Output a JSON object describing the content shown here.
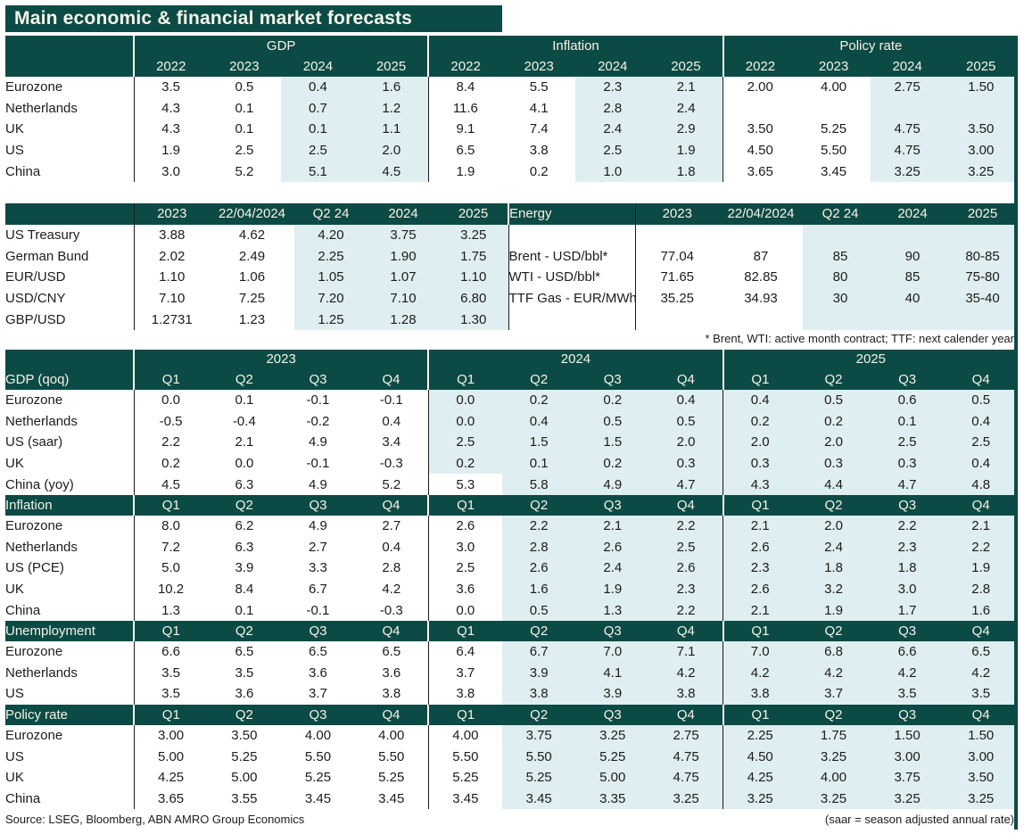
{
  "title": "Main economic & financial market forecasts",
  "colors": {
    "header_bg": "#0c4b45",
    "forecast_bg": "#dfeef0"
  },
  "annual_table": {
    "groups": [
      "GDP",
      "Inflation",
      "Policy rate"
    ],
    "years": [
      "2022",
      "2023",
      "2024",
      "2025"
    ],
    "rows": [
      {
        "label": "Eurozone",
        "gdp": [
          "3.5",
          "0.5",
          "0.4",
          "1.6"
        ],
        "inflation": [
          "8.4",
          "5.5",
          "2.3",
          "2.1"
        ],
        "policy_rate": [
          "2.00",
          "4.00",
          "2.75",
          "1.50"
        ]
      },
      {
        "label": "Netherlands",
        "gdp": [
          "4.3",
          "0.1",
          "0.7",
          "1.2"
        ],
        "inflation": [
          "11.6",
          "4.1",
          "2.8",
          "2.4"
        ],
        "policy_rate": [
          "",
          "",
          "",
          ""
        ]
      },
      {
        "label": "UK",
        "gdp": [
          "4.3",
          "0.1",
          "0.1",
          "1.1"
        ],
        "inflation": [
          "9.1",
          "7.4",
          "2.4",
          "2.9"
        ],
        "policy_rate": [
          "3.50",
          "5.25",
          "4.75",
          "3.50"
        ]
      },
      {
        "label": "US",
        "gdp": [
          "1.9",
          "2.5",
          "2.5",
          "2.0"
        ],
        "inflation": [
          "6.5",
          "3.8",
          "2.5",
          "1.9"
        ],
        "policy_rate": [
          "4.50",
          "5.50",
          "4.75",
          "3.00"
        ]
      },
      {
        "label": "China",
        "gdp": [
          "3.0",
          "5.2",
          "5.1",
          "4.5"
        ],
        "inflation": [
          "1.9",
          "0.2",
          "1.0",
          "1.8"
        ],
        "policy_rate": [
          "3.65",
          "3.45",
          "3.25",
          "3.25"
        ]
      }
    ]
  },
  "markets_table": {
    "value_headers": [
      "2023",
      "22/04/2024",
      "Q2 24",
      "2024",
      "2025"
    ],
    "energy_header": "Energy",
    "rates_rows": [
      {
        "label": "US Treasury",
        "values": [
          "3.88",
          "4.62",
          "4.20",
          "3.75",
          "3.25"
        ]
      },
      {
        "label": "German Bund",
        "values": [
          "2.02",
          "2.49",
          "2.25",
          "1.90",
          "1.75"
        ]
      },
      {
        "label": "EUR/USD",
        "values": [
          "1.10",
          "1.06",
          "1.05",
          "1.07",
          "1.10"
        ]
      },
      {
        "label": "USD/CNY",
        "values": [
          "7.10",
          "7.25",
          "7.20",
          "7.10",
          "6.80"
        ]
      },
      {
        "label": "GBP/USD",
        "values": [
          "1.2731",
          "1.23",
          "1.25",
          "1.28",
          "1.30"
        ]
      }
    ],
    "energy_rows": [
      {
        "label": "",
        "values": [
          "",
          "",
          "",
          "",
          ""
        ]
      },
      {
        "label": "Brent - USD/bbl*",
        "values": [
          "77.04",
          "87",
          "85",
          "90",
          "80-85"
        ]
      },
      {
        "label": "WTI - USD/bbl*",
        "values": [
          "71.65",
          "82.85",
          "80",
          "85",
          "75-80"
        ]
      },
      {
        "label": "TTF Gas - EUR/MWh*",
        "values": [
          "35.25",
          "34.93",
          "30",
          "40",
          "35-40"
        ]
      },
      {
        "label": "",
        "values": [
          "",
          "",
          "",
          "",
          ""
        ]
      }
    ],
    "footnote": "* Brent, WTI: active month contract; TTF: next calender year"
  },
  "quarterly_table": {
    "years": [
      "2023",
      "2024",
      "2025"
    ],
    "quarters": [
      "Q1",
      "Q2",
      "Q3",
      "Q4"
    ],
    "sections": [
      {
        "label": "GDP (qoq)",
        "rows": [
          {
            "label": "Eurozone",
            "values": [
              "0.0",
              "0.1",
              "-0.1",
              "-0.1",
              "0.0",
              "0.2",
              "0.2",
              "0.4",
              "0.4",
              "0.5",
              "0.6",
              "0.5"
            ],
            "forecast_from": 4
          },
          {
            "label": "Netherlands",
            "values": [
              "-0.5",
              "-0.4",
              "-0.2",
              "0.4",
              "0.0",
              "0.4",
              "0.5",
              "0.5",
              "0.2",
              "0.2",
              "0.1",
              "0.4"
            ],
            "forecast_from": 4
          },
          {
            "label": "US (saar)",
            "values": [
              "2.2",
              "2.1",
              "4.9",
              "3.4",
              "2.5",
              "1.5",
              "1.5",
              "2.0",
              "2.0",
              "2.0",
              "2.5",
              "2.5"
            ],
            "forecast_from": 4
          },
          {
            "label": "UK",
            "values": [
              "0.2",
              "0.0",
              "-0.1",
              "-0.3",
              "0.2",
              "0.1",
              "0.2",
              "0.3",
              "0.3",
              "0.3",
              "0.3",
              "0.4"
            ],
            "forecast_from": 4
          },
          {
            "label": "China (yoy)",
            "values": [
              "4.5",
              "6.3",
              "4.9",
              "5.2",
              "5.3",
              "5.8",
              "4.9",
              "4.7",
              "4.3",
              "4.4",
              "4.7",
              "4.8"
            ],
            "forecast_from": 5
          }
        ]
      },
      {
        "label": "Inflation",
        "rows": [
          {
            "label": "Eurozone",
            "values": [
              "8.0",
              "6.2",
              "4.9",
              "2.7",
              "2.6",
              "2.2",
              "2.1",
              "2.2",
              "2.1",
              "2.0",
              "2.2",
              "2.1"
            ],
            "forecast_from": 5
          },
          {
            "label": "Netherlands",
            "values": [
              "7.2",
              "6.3",
              "2.7",
              "0.4",
              "3.0",
              "2.8",
              "2.6",
              "2.5",
              "2.6",
              "2.4",
              "2.3",
              "2.2"
            ],
            "forecast_from": 5
          },
          {
            "label": "US (PCE)",
            "values": [
              "5.0",
              "3.9",
              "3.3",
              "2.8",
              "2.5",
              "2.6",
              "2.4",
              "2.6",
              "2.3",
              "1.8",
              "1.8",
              "1.9"
            ],
            "forecast_from": 5
          },
          {
            "label": "UK",
            "values": [
              "10.2",
              "8.4",
              "6.7",
              "4.2",
              "3.6",
              "1.6",
              "1.9",
              "2.3",
              "2.6",
              "3.2",
              "3.0",
              "2.8"
            ],
            "forecast_from": 5
          },
          {
            "label": "China",
            "values": [
              "1.3",
              "0.1",
              "-0.1",
              "-0.3",
              "0.0",
              "0.5",
              "1.3",
              "2.2",
              "2.1",
              "1.9",
              "1.7",
              "1.6"
            ],
            "forecast_from": 5
          }
        ]
      },
      {
        "label": "Unemployment",
        "rows": [
          {
            "label": "Eurozone",
            "values": [
              "6.6",
              "6.5",
              "6.5",
              "6.5",
              "6.4",
              "6.7",
              "7.0",
              "7.1",
              "7.0",
              "6.8",
              "6.6",
              "6.5"
            ],
            "forecast_from": 5
          },
          {
            "label": "Netherlands",
            "values": [
              "3.5",
              "3.5",
              "3.6",
              "3.6",
              "3.7",
              "3.9",
              "4.1",
              "4.2",
              "4.2",
              "4.2",
              "4.2",
              "4.2"
            ],
            "forecast_from": 5
          },
          {
            "label": "US",
            "values": [
              "3.5",
              "3.6",
              "3.7",
              "3.8",
              "3.8",
              "3.8",
              "3.9",
              "3.8",
              "3.8",
              "3.7",
              "3.5",
              "3.5"
            ],
            "forecast_from": 5
          }
        ]
      },
      {
        "label": "Policy rate",
        "rows": [
          {
            "label": "Eurozone",
            "values": [
              "3.00",
              "3.50",
              "4.00",
              "4.00",
              "4.00",
              "3.75",
              "3.25",
              "2.75",
              "2.25",
              "1.75",
              "1.50",
              "1.50"
            ],
            "forecast_from": 5
          },
          {
            "label": "US",
            "values": [
              "5.00",
              "5.25",
              "5.50",
              "5.50",
              "5.50",
              "5.50",
              "5.25",
              "4.75",
              "4.50",
              "3.25",
              "3.00",
              "3.00"
            ],
            "forecast_from": 5
          },
          {
            "label": "UK",
            "values": [
              "4.25",
              "5.00",
              "5.25",
              "5.25",
              "5.25",
              "5.25",
              "5.00",
              "4.75",
              "4.25",
              "4.00",
              "3.75",
              "3.50"
            ],
            "forecast_from": 5
          },
          {
            "label": "China",
            "values": [
              "3.65",
              "3.55",
              "3.45",
              "3.45",
              "3.45",
              "3.45",
              "3.35",
              "3.25",
              "3.25",
              "3.25",
              "3.25",
              "3.25"
            ],
            "forecast_from": 5
          }
        ]
      }
    ]
  },
  "footer": {
    "source": "Source: LSEG, Bloomberg, ABN AMRO Group Economics",
    "note": "(saar = season adjusted annual rate)"
  }
}
